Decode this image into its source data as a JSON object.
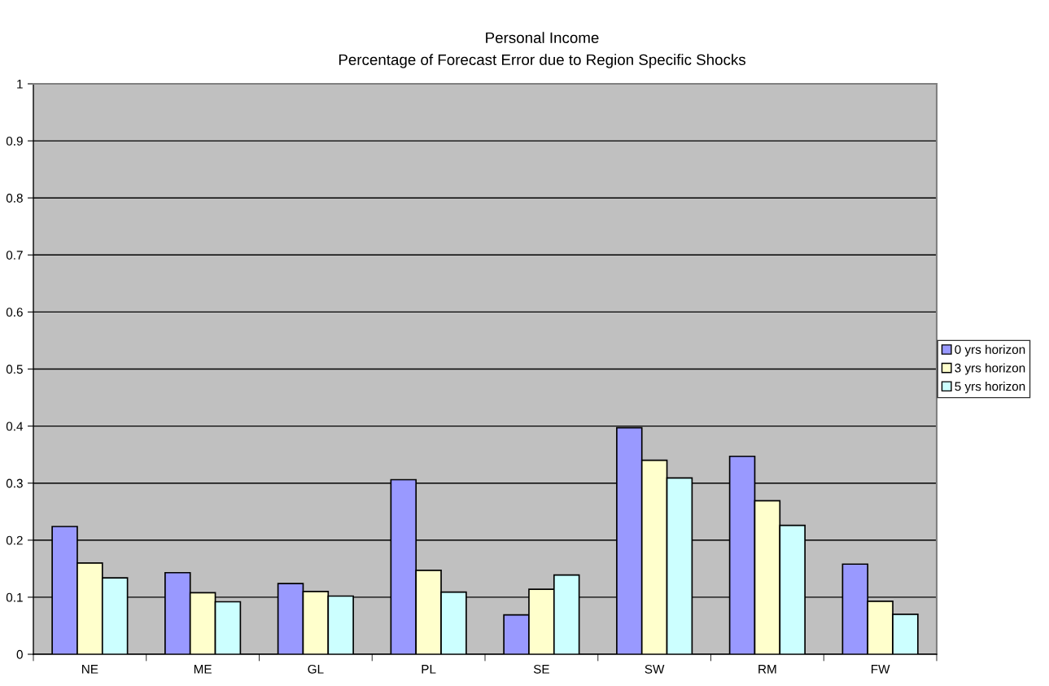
{
  "chart_data": {
    "type": "bar",
    "title": "Personal Income",
    "subtitle": "Percentage of Forecast Error due to Region Specific Shocks",
    "categories": [
      "NE",
      "ME",
      "GL",
      "PL",
      "SE",
      "SW",
      "RM",
      "FW"
    ],
    "series": [
      {
        "name": "0 yrs horizon",
        "color": "#9999ff",
        "values": [
          0.224,
          0.143,
          0.124,
          0.306,
          0.069,
          0.397,
          0.347,
          0.158
        ]
      },
      {
        "name": "3 yrs horizon",
        "color": "#ffffcc",
        "values": [
          0.16,
          0.108,
          0.11,
          0.147,
          0.114,
          0.34,
          0.269,
          0.093
        ]
      },
      {
        "name": "5 yrs horizon",
        "color": "#ccffff",
        "values": [
          0.134,
          0.092,
          0.102,
          0.109,
          0.139,
          0.309,
          0.226,
          0.07
        ]
      }
    ],
    "ylim": [
      0,
      1
    ],
    "yticks": [
      0,
      0.1,
      0.2,
      0.3,
      0.4,
      0.5,
      0.6,
      0.7,
      0.8,
      0.9,
      1
    ],
    "grid": "y",
    "legend": "right"
  }
}
